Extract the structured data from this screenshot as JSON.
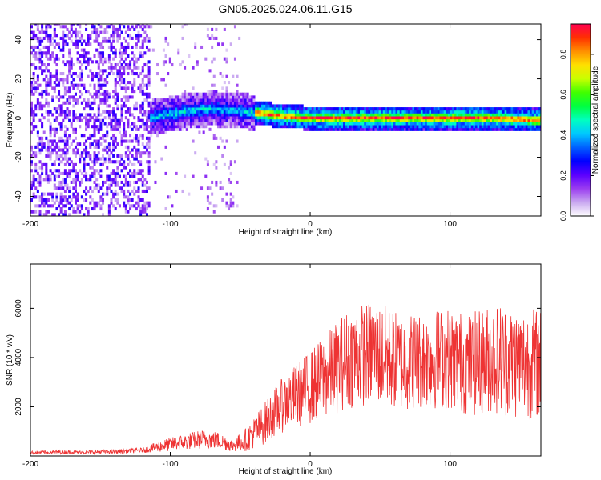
{
  "figure": {
    "title": "GN05.2025.024.06.11.G15"
  },
  "chart_data": [
    {
      "type": "heatmap",
      "xlabel": "Height of straight line (km)",
      "ylabel": "Frequency (Hz)",
      "xlim": [
        -200,
        165
      ],
      "ylim": [
        -50,
        48
      ],
      "xticks": [
        -200,
        -100,
        0,
        100
      ],
      "yticks": [
        -40,
        -20,
        0,
        20,
        40
      ],
      "colorbar": {
        "label": "Normalized spectral amplitude",
        "range": [
          0.0,
          0.95
        ],
        "ticks": [
          "0.0",
          "0.2",
          "0.4",
          "0.6",
          "0.8"
        ],
        "tick_values": [
          0,
          0.2,
          0.4,
          0.6,
          0.8
        ],
        "colors": [
          "#ffffff",
          "#c9a8f0",
          "#9a3cf0",
          "#5a00ff",
          "#0000ff",
          "#0060ff",
          "#00c8ff",
          "#00ffc0",
          "#00ff40",
          "#40ff00",
          "#c8ff00",
          "#ffe000",
          "#ff9000",
          "#ff3000",
          "#ff0050"
        ]
      },
      "features": {
        "signal_band_center_hz": [
          [
            -115,
            0
          ],
          [
            -100,
            2
          ],
          [
            -85,
            4
          ],
          [
            -70,
            5
          ],
          [
            -55,
            4
          ],
          [
            -40,
            3
          ],
          [
            -20,
            1
          ],
          [
            0,
            0
          ],
          [
            50,
            0
          ],
          [
            100,
            0
          ],
          [
            130,
            0
          ],
          [
            165,
            -1
          ]
        ],
        "noise_region_km": [
          -200,
          -115
        ],
        "sparse_noise_region_km": [
          -115,
          -50
        ]
      }
    },
    {
      "type": "line",
      "xlabel": "Height of straight line (km)",
      "ylabel": "SNR (10 * v/v)",
      "xlim": [
        -200,
        165
      ],
      "ylim": [
        0,
        7800
      ],
      "xticks": [
        -200,
        -100,
        0,
        100
      ],
      "yticks": [
        2000,
        4000,
        6000
      ],
      "series": [
        {
          "color": "#ee3333",
          "x": [
            -200,
            -180,
            -160,
            -140,
            -120,
            -105,
            -95,
            -85,
            -75,
            -65,
            -55,
            -45,
            -35,
            -25,
            -15,
            -5,
            5,
            15,
            25,
            35,
            45,
            55,
            65,
            75,
            85,
            95,
            105,
            115,
            125,
            135,
            145,
            155,
            165
          ],
          "mean": [
            140,
            160,
            150,
            180,
            230,
            420,
            520,
            620,
            700,
            620,
            420,
            700,
            1200,
            1800,
            2300,
            2600,
            3000,
            3400,
            3900,
            4100,
            4200,
            4000,
            3800,
            3900,
            3900,
            4000,
            3900,
            3700,
            3900,
            4000,
            3800,
            3800,
            3700
          ],
          "spread": [
            60,
            80,
            70,
            90,
            100,
            250,
            300,
            350,
            400,
            350,
            250,
            500,
            800,
            1000,
            1200,
            1400,
            1600,
            1800,
            2000,
            2100,
            2100,
            2100,
            2000,
            2000,
            2000,
            2100,
            2100,
            2100,
            2200,
            2300,
            2300,
            2300,
            2300
          ]
        }
      ]
    }
  ]
}
